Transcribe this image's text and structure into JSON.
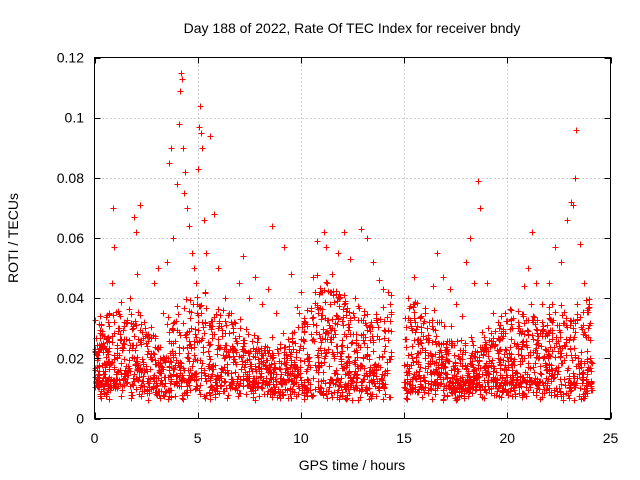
{
  "chart_data": {
    "type": "scatter",
    "title": "Day 188 of 2022, Rate Of TEC Index for receiver bndy",
    "xlabel": "GPS time / hours",
    "ylabel": "ROTI / TECUs",
    "xlim": [
      0,
      25
    ],
    "ylim": [
      0,
      0.12
    ],
    "xticks": [
      0,
      5,
      10,
      15,
      20,
      25
    ],
    "yticks": [
      0,
      0.02,
      0.04,
      0.06,
      0.08,
      0.1,
      0.12
    ],
    "xtick_labels": [
      "0",
      "5",
      "10",
      "15",
      "20",
      "25"
    ],
    "ytick_labels": [
      "0",
      "0.02",
      "0.04",
      "0.06",
      "0.08",
      "0.1",
      "0.12"
    ],
    "grid": true,
    "marker": "+",
    "color": "#ff0000",
    "data_gap_hours": [
      14.4,
      15.0
    ],
    "series": [
      {
        "name": "ROTI",
        "points": [
          [
            0.05,
            0.012
          ],
          [
            0.2,
            0.022
          ],
          [
            0.35,
            0.028
          ],
          [
            0.5,
            0.018
          ],
          [
            0.7,
            0.035
          ],
          [
            0.85,
            0.045
          ],
          [
            0.9,
            0.07
          ],
          [
            0.95,
            0.057
          ],
          [
            1.2,
            0.03
          ],
          [
            1.4,
            0.025
          ],
          [
            1.7,
            0.04
          ],
          [
            1.9,
            0.067
          ],
          [
            2.0,
            0.062
          ],
          [
            2.05,
            0.048
          ],
          [
            2.2,
            0.071
          ],
          [
            2.4,
            0.032
          ],
          [
            2.6,
            0.028
          ],
          [
            2.9,
            0.045
          ],
          [
            3.1,
            0.05
          ],
          [
            3.3,
            0.035
          ],
          [
            3.5,
            0.052
          ],
          [
            3.6,
            0.085
          ],
          [
            3.7,
            0.09
          ],
          [
            3.8,
            0.06
          ],
          [
            4.0,
            0.078
          ],
          [
            4.1,
            0.098
          ],
          [
            4.15,
            0.109
          ],
          [
            4.2,
            0.115
          ],
          [
            4.25,
            0.113
          ],
          [
            4.3,
            0.09
          ],
          [
            4.35,
            0.075
          ],
          [
            4.4,
            0.082
          ],
          [
            4.5,
            0.07
          ],
          [
            4.6,
            0.064
          ],
          [
            4.7,
            0.055
          ],
          [
            4.8,
            0.05
          ],
          [
            4.9,
            0.045
          ],
          [
            5.0,
            0.083
          ],
          [
            5.05,
            0.097
          ],
          [
            5.1,
            0.104
          ],
          [
            5.15,
            0.095
          ],
          [
            5.2,
            0.09
          ],
          [
            5.3,
            0.066
          ],
          [
            5.4,
            0.055
          ],
          [
            5.6,
            0.094
          ],
          [
            5.8,
            0.068
          ],
          [
            6.0,
            0.05
          ],
          [
            6.3,
            0.04
          ],
          [
            6.6,
            0.035
          ],
          [
            7.0,
            0.045
          ],
          [
            7.2,
            0.054
          ],
          [
            7.5,
            0.04
          ],
          [
            7.8,
            0.047
          ],
          [
            8.1,
            0.038
          ],
          [
            8.4,
            0.043
          ],
          [
            8.6,
            0.064
          ],
          [
            8.8,
            0.035
          ],
          [
            9.2,
            0.057
          ],
          [
            9.5,
            0.048
          ],
          [
            9.8,
            0.037
          ],
          [
            10.0,
            0.042
          ],
          [
            10.3,
            0.036
          ],
          [
            10.6,
            0.047
          ],
          [
            10.8,
            0.059
          ],
          [
            11.1,
            0.062
          ],
          [
            11.2,
            0.057
          ],
          [
            11.5,
            0.048
          ],
          [
            11.8,
            0.055
          ],
          [
            12.1,
            0.062
          ],
          [
            12.4,
            0.053
          ],
          [
            12.6,
            0.04
          ],
          [
            12.9,
            0.063
          ],
          [
            13.2,
            0.06
          ],
          [
            13.5,
            0.052
          ],
          [
            13.8,
            0.046
          ],
          [
            14.0,
            0.043
          ],
          [
            14.2,
            0.042
          ],
          [
            15.2,
            0.04
          ],
          [
            15.5,
            0.047
          ],
          [
            15.8,
            0.034
          ],
          [
            16.1,
            0.03
          ],
          [
            16.4,
            0.044
          ],
          [
            16.6,
            0.055
          ],
          [
            16.9,
            0.047
          ],
          [
            17.2,
            0.043
          ],
          [
            17.5,
            0.038
          ],
          [
            17.8,
            0.034
          ],
          [
            18.0,
            0.052
          ],
          [
            18.2,
            0.06
          ],
          [
            18.4,
            0.045
          ],
          [
            18.6,
            0.079
          ],
          [
            18.7,
            0.07
          ],
          [
            19.0,
            0.045
          ],
          [
            19.3,
            0.035
          ],
          [
            19.6,
            0.03
          ],
          [
            19.9,
            0.035
          ],
          [
            20.2,
            0.036
          ],
          [
            20.5,
            0.03
          ],
          [
            20.8,
            0.044
          ],
          [
            21.0,
            0.05
          ],
          [
            21.2,
            0.062
          ],
          [
            21.4,
            0.045
          ],
          [
            21.7,
            0.038
          ],
          [
            22.0,
            0.045
          ],
          [
            22.3,
            0.057
          ],
          [
            22.6,
            0.052
          ],
          [
            22.9,
            0.066
          ],
          [
            23.1,
            0.072
          ],
          [
            23.2,
            0.071
          ],
          [
            23.3,
            0.08
          ],
          [
            23.35,
            0.096
          ],
          [
            23.5,
            0.058
          ],
          [
            23.7,
            0.045
          ],
          [
            23.9,
            0.03
          ],
          [
            24.0,
            0.02
          ]
        ]
      }
    ]
  }
}
